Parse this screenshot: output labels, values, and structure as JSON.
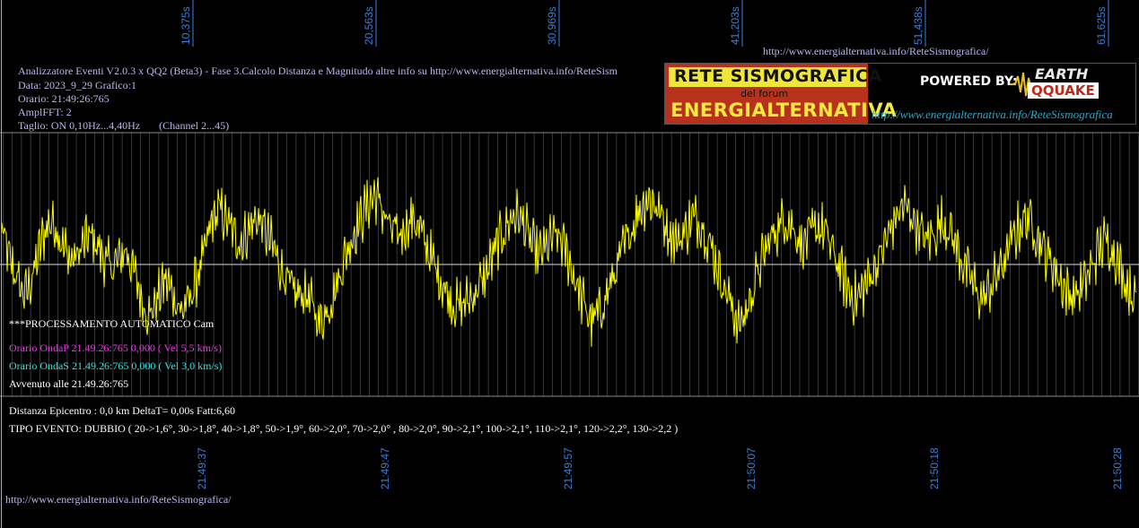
{
  "header": {
    "top_url": "http://www.energialternativa.info/ReteSismografica/",
    "info_lines": [
      "Analizzatore Eventi V2.0.3 x QQ2 (Beta3) - Fase 3.Calcolo Distanza e Magnitudo altre info su http://www.energialternativa.info/ReteSism",
      "Data: 2023_9_29 Grafico:1",
      "Orario: 21:49:26:765",
      "AmplFFT: 2",
      "Taglio: ON 0,10Hz...4,40Hz       (Channel 2...45)"
    ]
  },
  "banner": {
    "line1": "RETE SISMOGRAFICA",
    "line2": "del forum",
    "line3": "ENERGIALTERNATIVA",
    "powered": "POWERED BY:",
    "logo_top": "EARTH",
    "logo_bottom": "QQUAKE",
    "url": "http://www.energialternativa.info/ReteSismografica"
  },
  "processing": {
    "auto": "***PROCESSAMENTO AUTOMATICO Cam",
    "onda_p": "Orario OndaP 21.49.26:765  0,000 ( Vel 5,5 km/s)",
    "onda_s": "Orario OndaS 21.49.26:765  0,000 ( Vel 3,0 km/s)",
    "avvenuto": "Avvenuto alle 21.49.26:765"
  },
  "results": {
    "distanza": "Distanza Epicentro : 0,0 km DeltaT= 0,00s  Fatt:6,60",
    "tipo": "TIPO EVENTO: DUBBIO ( 20->1,6°, 30->1,8°, 40->1,8°, 50->1,9°, 60->2,0°, 70->2,0° , 80->2,0°, 90->2,1°, 100->2,1°, 110->2,1°, 120->2,2°, 130->2,2 )"
  },
  "footer_url": "http://www.energialternativa.info/ReteSismografica/",
  "colors": {
    "trace": "#ffff00",
    "grid": "#5a5a5a",
    "time_labels": "#3a7fd8",
    "onda_p": "#ff2cff",
    "onda_s": "#2ee6e6",
    "info_text": "#b8b8f0"
  },
  "chart_data": {
    "type": "line",
    "title": "",
    "xlabel": "",
    "ylabel": "",
    "top_ticks": [
      "10,375s",
      "20,563s",
      "30,969s",
      "41,203s",
      "51,438s",
      "61,625s"
    ],
    "bottom_ticks": [
      "21:49:37",
      "21:49:47",
      "21:49:57",
      "21:50:07",
      "21:50:18",
      "21:50:28"
    ],
    "ylim": [
      -1,
      1
    ],
    "grid": true,
    "series": [
      {
        "values": [
          0.45,
          0.05,
          -0.2,
          -0.4,
          -0.15,
          0.25,
          0.55,
          0.5,
          0.2,
          0.05,
          0.15,
          0.35,
          0.3,
          0.1,
          -0.05,
          0.05,
          0.2,
          -0.1,
          -0.45,
          -0.65,
          -0.45,
          -0.2,
          -0.35,
          -0.6,
          -0.5,
          -0.2,
          0.1,
          0.55,
          0.7,
          0.55,
          0.35,
          0.3,
          0.5,
          0.6,
          0.4,
          0.2,
          -0.05,
          -0.3,
          -0.4,
          -0.35,
          -0.55,
          -0.75,
          -0.55,
          -0.3,
          0.05,
          0.35,
          0.55,
          0.75,
          0.9,
          0.7,
          0.45,
          0.35,
          0.5,
          0.6,
          0.4,
          0.15,
          -0.1,
          -0.3,
          -0.5,
          -0.55,
          -0.45,
          -0.35,
          -0.2,
          0.05,
          0.3,
          0.5,
          0.65,
          0.55,
          0.3,
          0.1,
          0.2,
          0.35,
          0.3,
          0.05,
          -0.25,
          -0.55,
          -0.75,
          -0.6,
          -0.35,
          -0.1,
          0.2,
          0.45,
          0.7,
          0.85,
          0.8,
          0.6,
          0.4,
          0.3,
          0.45,
          0.6,
          0.55,
          0.3,
          0.0,
          -0.3,
          -0.55,
          -0.8,
          -0.55,
          -0.2,
          0.1,
          0.35,
          0.5,
          0.6,
          0.45,
          0.25,
          0.35,
          0.5,
          0.4,
          0.15,
          -0.1,
          -0.35,
          -0.45,
          -0.3,
          -0.1,
          0.1,
          0.35,
          0.6,
          0.75,
          0.65,
          0.45,
          0.3,
          0.4,
          0.55,
          0.45,
          0.2,
          -0.05,
          -0.25,
          -0.45,
          -0.35,
          -0.15,
          0.05,
          0.3,
          0.5,
          0.6,
          0.45,
          0.2,
          0.05,
          -0.15,
          -0.35,
          -0.4,
          -0.3,
          -0.1,
          0.15,
          0.3,
          0.2,
          -0.05,
          -0.3,
          -0.45
        ]
      }
    ]
  }
}
